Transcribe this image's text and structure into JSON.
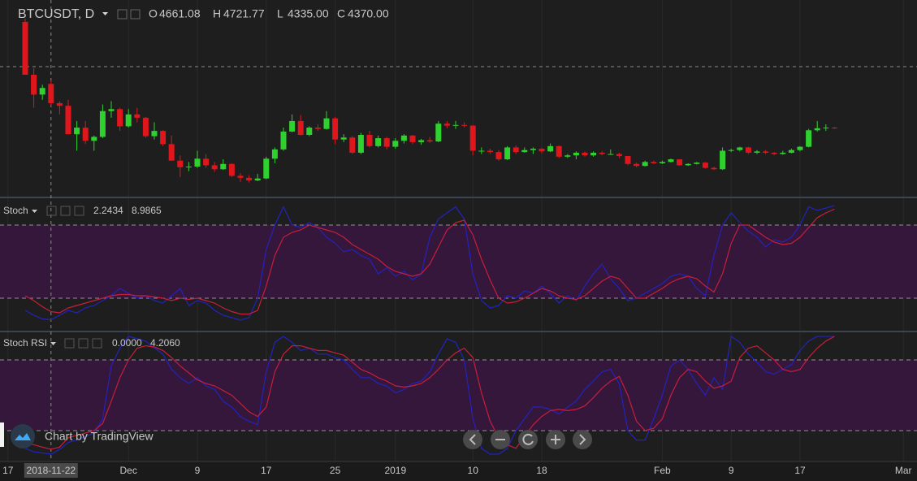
{
  "chart_data": [
    {
      "type": "candlestick",
      "title": "BTCUSDT, D",
      "readout": [
        {
          "key": "O",
          "text": "4661.08"
        },
        {
          "key": "H",
          "text": "4721.77"
        },
        {
          "key": "L",
          "text": "4335.00"
        },
        {
          "key": "C",
          "text": "4370.00"
        }
      ],
      "x": [
        "2018-11-19",
        "2018-11-20",
        "2018-11-21",
        "2018-11-22",
        "2018-11-23",
        "2018-11-24",
        "2018-11-25",
        "2018-11-26",
        "2018-11-27",
        "2018-11-28",
        "2018-11-29",
        "2018-11-30",
        "2018-12-01",
        "2018-12-02",
        "2018-12-03",
        "2018-12-04",
        "2018-12-05",
        "2018-12-06",
        "2018-12-07",
        "2018-12-08",
        "2018-12-09",
        "2018-12-10",
        "2018-12-11",
        "2018-12-12",
        "2018-12-13",
        "2018-12-14",
        "2018-12-15",
        "2018-12-16",
        "2018-12-17",
        "2018-12-18",
        "2018-12-19",
        "2018-12-20",
        "2018-12-21",
        "2018-12-22",
        "2018-12-23",
        "2018-12-24",
        "2018-12-25",
        "2018-12-26",
        "2018-12-27",
        "2018-12-28",
        "2018-12-29",
        "2018-12-30",
        "2018-12-31",
        "2019-01-01",
        "2019-01-02",
        "2019-01-03",
        "2019-01-04",
        "2019-01-05",
        "2019-01-06",
        "2019-01-07",
        "2019-01-08",
        "2019-01-09",
        "2019-01-10",
        "2019-01-11",
        "2019-01-12",
        "2019-01-13",
        "2019-01-14",
        "2019-01-15",
        "2019-01-16",
        "2019-01-17",
        "2019-01-18",
        "2019-01-19",
        "2019-01-20",
        "2019-01-21",
        "2019-01-22",
        "2019-01-23",
        "2019-01-24",
        "2019-01-25",
        "2019-01-26",
        "2019-01-27",
        "2019-01-28",
        "2019-01-29",
        "2019-01-30",
        "2019-01-31",
        "2019-02-01",
        "2019-02-02",
        "2019-02-03",
        "2019-02-04",
        "2019-02-05",
        "2019-02-06",
        "2019-02-07",
        "2019-02-08",
        "2019-02-09",
        "2019-02-10",
        "2019-02-11",
        "2019-02-12",
        "2019-02-13",
        "2019-02-14",
        "2019-02-15",
        "2019-02-16",
        "2019-02-17",
        "2019-02-18",
        "2019-02-19",
        "2019-02-20",
        "2019-02-21"
      ],
      "ohlc": [
        [
          5600,
          5650,
          4800,
          4800
        ],
        [
          4800,
          4900,
          4300,
          4500
        ],
        [
          4500,
          4650,
          4420,
          4600
        ],
        [
          4661.08,
          4721.77,
          4335.0,
          4370.0
        ],
        [
          4370,
          4400,
          4200,
          4330
        ],
        [
          4330,
          4420,
          3900,
          3900
        ],
        [
          3900,
          4100,
          3650,
          4000
        ],
        [
          4000,
          4100,
          3750,
          3800
        ],
        [
          3800,
          3880,
          3650,
          3860
        ],
        [
          3860,
          4350,
          3840,
          4250
        ],
        [
          4250,
          4400,
          4150,
          4280
        ],
        [
          4280,
          4300,
          3950,
          4020
        ],
        [
          4020,
          4280,
          4000,
          4200
        ],
        [
          4200,
          4300,
          4080,
          4150
        ],
        [
          4150,
          4160,
          3850,
          3870
        ],
        [
          3870,
          4080,
          3820,
          3950
        ],
        [
          3950,
          3960,
          3720,
          3750
        ],
        [
          3750,
          3880,
          3500,
          3500
        ],
        [
          3500,
          3580,
          3250,
          3400
        ],
        [
          3400,
          3480,
          3340,
          3410
        ],
        [
          3410,
          3650,
          3390,
          3530
        ],
        [
          3530,
          3600,
          3390,
          3430
        ],
        [
          3430,
          3480,
          3330,
          3370
        ],
        [
          3370,
          3520,
          3360,
          3450
        ],
        [
          3450,
          3460,
          3250,
          3270
        ],
        [
          3270,
          3310,
          3180,
          3240
        ],
        [
          3240,
          3280,
          3170,
          3200
        ],
        [
          3200,
          3300,
          3190,
          3230
        ],
        [
          3230,
          3560,
          3220,
          3530
        ],
        [
          3530,
          3700,
          3460,
          3670
        ],
        [
          3670,
          4000,
          3650,
          3940
        ],
        [
          3940,
          4200,
          3930,
          4100
        ],
        [
          4100,
          4190,
          3880,
          3890
        ],
        [
          3890,
          4020,
          3870,
          4000
        ],
        [
          4000,
          4050,
          3950,
          3980
        ],
        [
          3980,
          4250,
          3970,
          4140
        ],
        [
          4140,
          4160,
          3750,
          3820
        ],
        [
          3820,
          3900,
          3780,
          3850
        ],
        [
          3850,
          3870,
          3600,
          3620
        ],
        [
          3620,
          3920,
          3600,
          3890
        ],
        [
          3890,
          3950,
          3700,
          3720
        ],
        [
          3720,
          3880,
          3700,
          3840
        ],
        [
          3840,
          3860,
          3670,
          3710
        ],
        [
          3710,
          3840,
          3680,
          3800
        ],
        [
          3800,
          3900,
          3760,
          3880
        ],
        [
          3880,
          3890,
          3750,
          3780
        ],
        [
          3780,
          3830,
          3740,
          3810
        ],
        [
          3810,
          3860,
          3770,
          3790
        ],
        [
          3790,
          4100,
          3780,
          4060
        ],
        [
          4060,
          4100,
          3990,
          4030
        ],
        [
          4030,
          4100,
          3980,
          4040
        ],
        [
          4040,
          4080,
          4000,
          4030
        ],
        [
          4030,
          4040,
          3580,
          3650
        ],
        [
          3650,
          3700,
          3600,
          3650
        ],
        [
          3650,
          3680,
          3600,
          3630
        ],
        [
          3630,
          3660,
          3500,
          3520
        ],
        [
          3520,
          3720,
          3510,
          3700
        ],
        [
          3700,
          3730,
          3600,
          3630
        ],
        [
          3630,
          3700,
          3620,
          3660
        ],
        [
          3660,
          3700,
          3600,
          3680
        ],
        [
          3680,
          3690,
          3610,
          3640
        ],
        [
          3640,
          3760,
          3630,
          3720
        ],
        [
          3720,
          3730,
          3540,
          3560
        ],
        [
          3560,
          3600,
          3540,
          3580
        ],
        [
          3580,
          3640,
          3520,
          3620
        ],
        [
          3620,
          3640,
          3560,
          3580
        ],
        [
          3580,
          3640,
          3560,
          3620
        ],
        [
          3620,
          3640,
          3580,
          3600
        ],
        [
          3600,
          3670,
          3590,
          3600
        ],
        [
          3600,
          3620,
          3540,
          3570
        ],
        [
          3570,
          3570,
          3430,
          3450
        ],
        [
          3450,
          3470,
          3400,
          3420
        ],
        [
          3420,
          3500,
          3410,
          3480
        ],
        [
          3480,
          3500,
          3450,
          3460
        ],
        [
          3460,
          3500,
          3450,
          3480
        ],
        [
          3480,
          3530,
          3470,
          3520
        ],
        [
          3520,
          3520,
          3420,
          3430
        ],
        [
          3430,
          3460,
          3420,
          3450
        ],
        [
          3450,
          3480,
          3440,
          3470
        ],
        [
          3470,
          3480,
          3380,
          3390
        ],
        [
          3390,
          3410,
          3360,
          3370
        ],
        [
          3370,
          3700,
          3360,
          3650
        ],
        [
          3650,
          3680,
          3630,
          3660
        ],
        [
          3660,
          3710,
          3640,
          3700
        ],
        [
          3700,
          3710,
          3600,
          3620
        ],
        [
          3620,
          3660,
          3600,
          3640
        ],
        [
          3640,
          3660,
          3600,
          3620
        ],
        [
          3620,
          3630,
          3580,
          3600
        ],
        [
          3600,
          3650,
          3590,
          3620
        ],
        [
          3620,
          3680,
          3610,
          3660
        ],
        [
          3660,
          3720,
          3640,
          3710
        ],
        [
          3710,
          3980,
          3700,
          3960
        ],
        [
          3960,
          4100,
          3940,
          3990
        ],
        [
          3990,
          4050,
          3950,
          4000
        ],
        [
          4000,
          4010,
          3980,
          3995
        ]
      ],
      "up_color": "#2ed12e",
      "down_color": "#e0161d",
      "ylim": [
        2980,
        5870
      ]
    },
    {
      "type": "line",
      "title": "Stoch",
      "readout": [
        "2.2434",
        "8.9865"
      ],
      "ylim": [
        0,
        100
      ],
      "bands": [
        20,
        80
      ],
      "band_color": "#34173a",
      "series": [
        {
          "color": "#2323c0",
          "values": [
            10,
            6,
            3,
            2.2434,
            6,
            10,
            8,
            12,
            14,
            18,
            22,
            28,
            24,
            20,
            22,
            18,
            16,
            22,
            28,
            14,
            18,
            16,
            10,
            6,
            4,
            2,
            4,
            20,
            60,
            80,
            95,
            80,
            78,
            82,
            78,
            70,
            65,
            58,
            60,
            55,
            52,
            40,
            45,
            38,
            42,
            35,
            40,
            70,
            85,
            90,
            95,
            85,
            40,
            18,
            12,
            14,
            22,
            20,
            26,
            24,
            30,
            24,
            16,
            22,
            18,
            30,
            40,
            48,
            36,
            28,
            18,
            20,
            24,
            28,
            32,
            38,
            40,
            38,
            28,
            22,
            55,
            80,
            90,
            82,
            75,
            70,
            62,
            68,
            66,
            70,
            80,
            95,
            92,
            94,
            96
          ]
        },
        {
          "color": "#c81e3c",
          "values": [
            22,
            18,
            13,
            8.9865,
            8,
            12,
            14,
            16,
            18,
            20,
            22,
            23,
            23,
            22,
            22,
            21,
            20,
            18,
            20,
            19,
            20,
            18,
            16,
            12,
            9,
            7,
            7,
            10,
            30,
            55,
            70,
            74,
            76,
            80,
            78,
            76,
            74,
            70,
            64,
            60,
            56,
            52,
            46,
            42,
            40,
            38,
            40,
            48,
            62,
            76,
            82,
            84,
            72,
            52,
            35,
            20,
            16,
            17,
            20,
            24,
            28,
            26,
            22,
            20,
            19,
            22,
            28,
            34,
            38,
            36,
            28,
            20,
            20,
            24,
            28,
            33,
            36,
            38,
            36,
            30,
            25,
            40,
            65,
            80,
            80,
            75,
            70,
            66,
            64,
            65,
            70,
            78,
            86,
            90,
            93
          ]
        }
      ]
    },
    {
      "type": "line",
      "title": "Stoch RSI",
      "readout": [
        "0.0000",
        "4.2060"
      ],
      "ylim": [
        0,
        100
      ],
      "bands": [
        20,
        80
      ],
      "band_color": "#34173a",
      "series": [
        {
          "color": "#2323c0",
          "values": [
            5,
            2,
            1,
            0,
            4,
            10,
            12,
            15,
            18,
            30,
            75,
            90,
            100,
            98,
            96,
            90,
            85,
            72,
            65,
            60,
            65,
            58,
            55,
            45,
            40,
            32,
            28,
            25,
            70,
            95,
            100,
            95,
            88,
            90,
            85,
            85,
            82,
            80,
            72,
            65,
            65,
            60,
            58,
            52,
            55,
            60,
            62,
            70,
            85,
            98,
            95,
            80,
            30,
            5,
            0,
            0,
            5,
            20,
            30,
            40,
            40,
            38,
            34,
            40,
            45,
            55,
            62,
            70,
            72,
            60,
            20,
            12,
            12,
            30,
            50,
            75,
            80,
            72,
            60,
            50,
            65,
            55,
            100,
            95,
            85,
            78,
            70,
            68,
            72,
            76,
            88,
            96,
            100,
            100,
            100
          ]
        },
        {
          "color": "#c81e3c",
          "values": [
            10,
            8,
            6,
            4.206,
            6,
            14,
            16,
            18,
            20,
            26,
            45,
            65,
            80,
            90,
            92,
            91,
            88,
            82,
            75,
            69,
            63,
            60,
            58,
            54,
            50,
            43,
            36,
            32,
            40,
            70,
            85,
            92,
            92,
            90,
            88,
            88,
            86,
            84,
            78,
            72,
            69,
            65,
            62,
            58,
            57,
            58,
            60,
            65,
            72,
            80,
            86,
            90,
            82,
            52,
            28,
            14,
            8,
            5,
            15,
            25,
            32,
            37,
            38,
            37,
            38,
            41,
            48,
            56,
            62,
            66,
            50,
            28,
            20,
            22,
            30,
            50,
            65,
            72,
            70,
            62,
            56,
            58,
            62,
            82,
            90,
            92,
            86,
            80,
            72,
            70,
            72,
            82,
            90,
            96,
            100
          ]
        }
      ]
    }
  ],
  "x_axis": {
    "ticks": [
      {
        "value": "2018-11-17",
        "label": "17"
      },
      {
        "value": "2018-12-01",
        "label": "Dec"
      },
      {
        "value": "2018-12-09",
        "label": "9"
      },
      {
        "value": "2018-12-17",
        "label": "17"
      },
      {
        "value": "2018-12-25",
        "label": "25"
      },
      {
        "value": "2019-01-01",
        "label": "2019"
      },
      {
        "value": "2019-01-10",
        "label": "10"
      },
      {
        "value": "2019-01-18",
        "label": "18"
      },
      {
        "value": "2019-02-01",
        "label": "Feb"
      },
      {
        "value": "2019-02-09",
        "label": "9"
      },
      {
        "value": "2019-02-17",
        "label": "17"
      },
      {
        "value": "2019-03-01",
        "label": "Mar"
      }
    ],
    "crosshair": {
      "value": "2018-11-22",
      "label": "2018-11-22"
    }
  },
  "watermark": "Chart by TradingView"
}
